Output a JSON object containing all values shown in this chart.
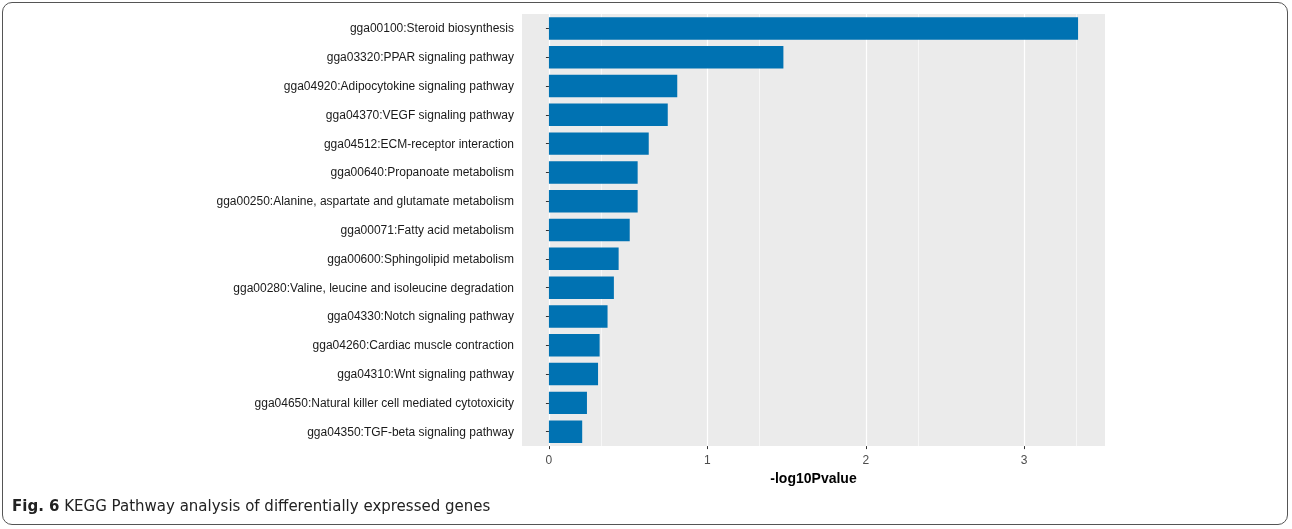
{
  "chart_data": {
    "type": "bar",
    "orientation": "horizontal",
    "xlabel": "-log10Pvalue",
    "annotations": [
      "Fig. 6 KEGG Pathway analysis of differentially expressed genes"
    ],
    "categories": [
      "gga00100:Steroid biosynthesis",
      "gga03320:PPAR signaling pathway",
      "gga04920:Adipocytokine signaling pathway",
      "gga04370:VEGF signaling pathway",
      "gga04512:ECM-receptor interaction",
      "gga00640:Propanoate metabolism",
      "gga00250:Alanine, aspartate and glutamate metabolism",
      "gga00071:Fatty acid metabolism",
      "gga00600:Sphingolipid metabolism",
      "gga00280:Valine, leucine and isoleucine degradation",
      "gga04330:Notch signaling pathway",
      "gga04260:Cardiac muscle contraction",
      "gga04310:Wnt signaling pathway",
      "gga04650:Natural killer cell mediated cytotoxicity",
      "gga04350:TGF-beta signaling pathway"
    ],
    "values": [
      3.34,
      1.48,
      0.81,
      0.75,
      0.63,
      0.56,
      0.56,
      0.51,
      0.44,
      0.41,
      0.37,
      0.32,
      0.31,
      0.24,
      0.21
    ],
    "color": "#0072b2",
    "xlim": [
      -0.17,
      3.51
    ],
    "xticks": [
      0,
      1,
      2,
      3
    ],
    "grid": true
  }
}
